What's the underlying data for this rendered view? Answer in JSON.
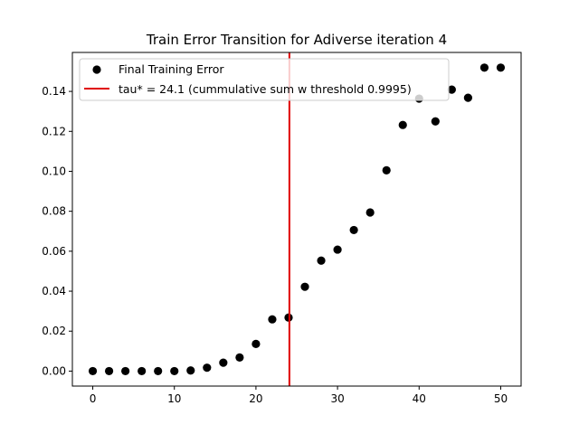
{
  "chart_data": {
    "type": "scatter",
    "title": "Train Error Transition for Adiverse iteration 4",
    "xlabel": "",
    "ylabel": "",
    "xlim": [
      -2.5,
      52.5
    ],
    "ylim": [
      -0.0075,
      0.1595
    ],
    "x_ticks": [
      0,
      10,
      20,
      30,
      40,
      50
    ],
    "x_tick_labels": [
      "0",
      "10",
      "20",
      "30",
      "40",
      "50"
    ],
    "y_ticks": [
      0.0,
      0.02,
      0.04,
      0.06,
      0.08,
      0.1,
      0.12,
      0.14
    ],
    "y_tick_labels": [
      "0.00",
      "0.02",
      "0.04",
      "0.06",
      "0.08",
      "0.10",
      "0.12",
      "0.14"
    ],
    "grid": false,
    "legend_position": "upper-left",
    "series": [
      {
        "name": "Final Training Error",
        "kind": "scatter",
        "color": "#000000",
        "points": [
          {
            "x": 0,
            "y": 0.0
          },
          {
            "x": 2,
            "y": 0.0
          },
          {
            "x": 4,
            "y": 0.0
          },
          {
            "x": 6,
            "y": 0.0
          },
          {
            "x": 8,
            "y": 0.0
          },
          {
            "x": 10,
            "y": 0.0
          },
          {
            "x": 12,
            "y": 0.0003
          },
          {
            "x": 14,
            "y": 0.0017
          },
          {
            "x": 16,
            "y": 0.0042
          },
          {
            "x": 18,
            "y": 0.0068
          },
          {
            "x": 20,
            "y": 0.0136
          },
          {
            "x": 22,
            "y": 0.0259
          },
          {
            "x": 24,
            "y": 0.0268
          },
          {
            "x": 26,
            "y": 0.0422
          },
          {
            "x": 28,
            "y": 0.0553
          },
          {
            "x": 30,
            "y": 0.0608
          },
          {
            "x": 32,
            "y": 0.0706
          },
          {
            "x": 34,
            "y": 0.0794
          },
          {
            "x": 36,
            "y": 0.1005
          },
          {
            "x": 38,
            "y": 0.1232
          },
          {
            "x": 40,
            "y": 0.1364
          },
          {
            "x": 42,
            "y": 0.125
          },
          {
            "x": 44,
            "y": 0.1409
          },
          {
            "x": 46,
            "y": 0.1368
          },
          {
            "x": 48,
            "y": 0.1519
          },
          {
            "x": 50,
            "y": 0.1519
          }
        ]
      },
      {
        "name": "tau* = 24.1 (cummulative sum w threshold 0.9995)",
        "kind": "vline",
        "color": "#e00000",
        "x": 24.1
      }
    ]
  }
}
